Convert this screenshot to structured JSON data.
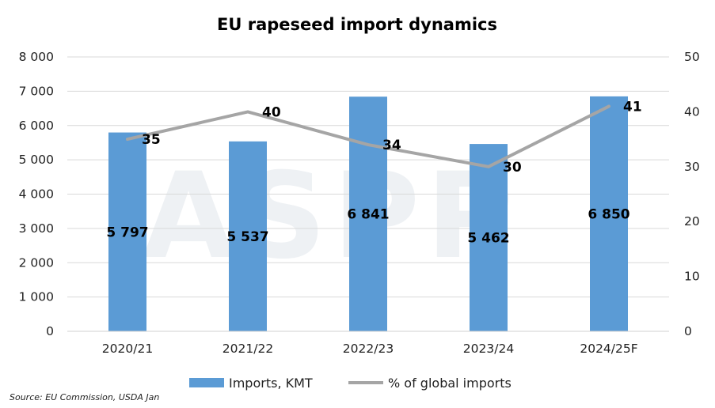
{
  "chart_data": {
    "type": "bar",
    "title": "EU rapeseed import dynamics",
    "categories": [
      "2020/21",
      "2021/22",
      "2022/23",
      "2023/24",
      "2024/25F"
    ],
    "series": [
      {
        "name": "Imports, KMT",
        "kind": "bar",
        "axis": "left",
        "color": "#5b9bd5",
        "values": [
          5797,
          5537,
          6841,
          5462,
          6850
        ],
        "labels": [
          "5 797",
          "5 537",
          "6 841",
          "5 462",
          "6 850"
        ]
      },
      {
        "name": "% of global imports",
        "kind": "line",
        "axis": "right",
        "color": "#a5a5a5",
        "values": [
          35,
          40,
          34,
          30,
          41
        ],
        "labels": [
          "35",
          "40",
          "34",
          "30",
          "41"
        ]
      }
    ],
    "y_left": {
      "ylim": [
        0,
        8000
      ],
      "ticks": [
        "0",
        "1 000",
        "2 000",
        "3 000",
        "4 000",
        "5 000",
        "6 000",
        "7 000",
        "8 000"
      ]
    },
    "y_right": {
      "ylim": [
        0,
        50
      ],
      "ticks": [
        "0",
        "10",
        "20",
        "30",
        "40",
        "50"
      ]
    },
    "grid": true,
    "legend_position": "bottom"
  },
  "watermark": "ASPP",
  "source": "Source: EU Commission, USDA Jan"
}
